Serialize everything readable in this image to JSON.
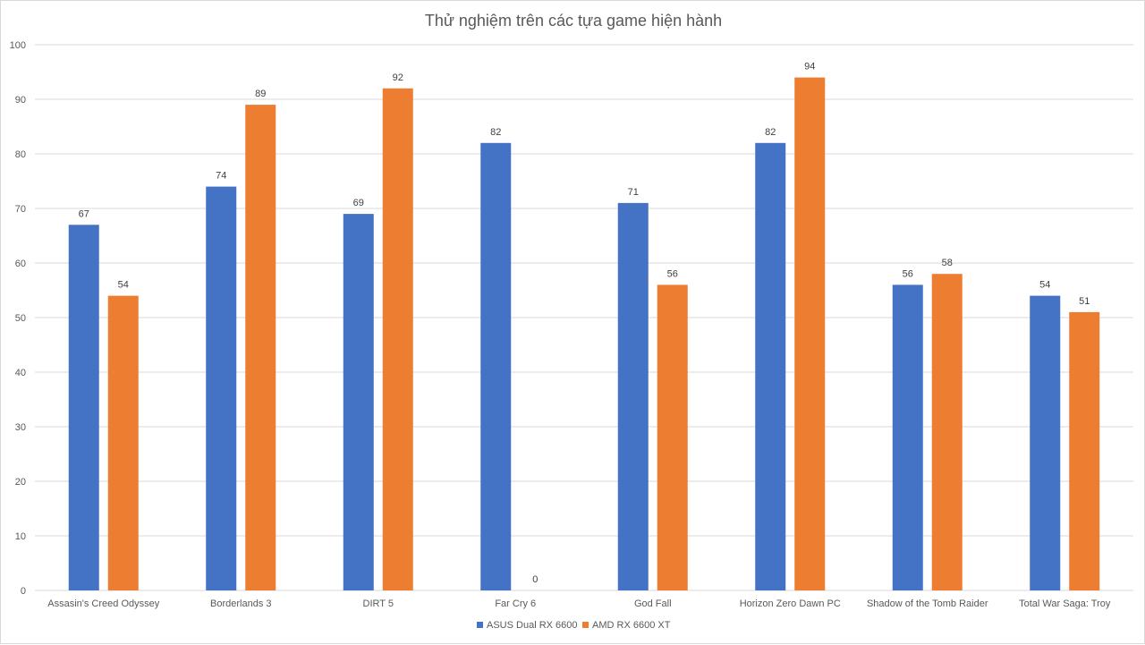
{
  "chart_data": {
    "type": "bar",
    "title": "Thử nghiệm trên các tựa game hiện hành",
    "xlabel": "",
    "ylabel": "",
    "ylim": [
      0,
      100
    ],
    "yticks": [
      0,
      10,
      20,
      30,
      40,
      50,
      60,
      70,
      80,
      90,
      100
    ],
    "grid": true,
    "legend_position": "bottom",
    "categories": [
      "Assasin's Creed Odyssey",
      "Borderlands 3",
      "DIRT 5",
      "Far Cry 6",
      "God Fall",
      "Horizon Zero Dawn PC",
      "Shadow of the Tomb Raider",
      "Total War Saga: Troy"
    ],
    "series": [
      {
        "name": "ASUS Dual RX 6600",
        "color": "#4472c4",
        "values": [
          67,
          74,
          69,
          82,
          71,
          82,
          56,
          54
        ]
      },
      {
        "name": "AMD RX 6600 XT",
        "color": "#ed7d31",
        "values": [
          54,
          89,
          92,
          0,
          56,
          94,
          58,
          51
        ]
      }
    ]
  }
}
